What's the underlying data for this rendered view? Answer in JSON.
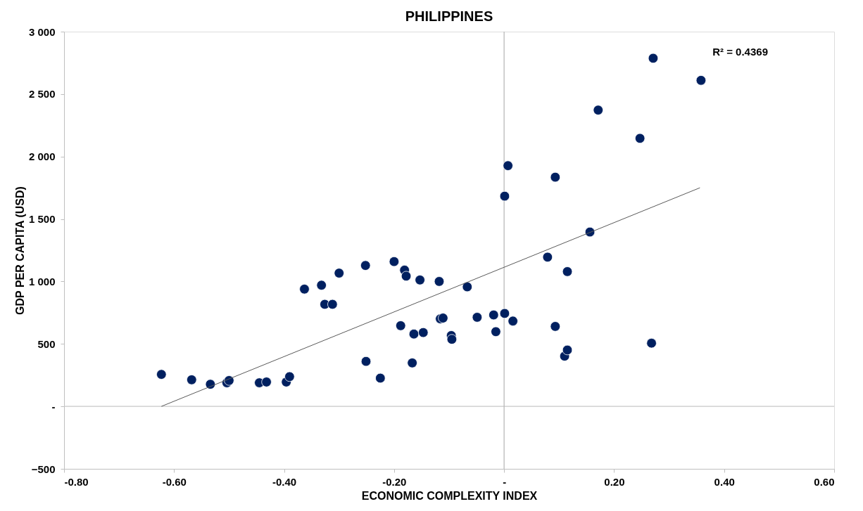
{
  "chart_data": {
    "type": "scatter",
    "title": "PHILIPPINES",
    "xlabel": "ECONOMIC COMPLEXITY INDEX",
    "ylabel": "GDP PER CAPITA (USD)",
    "annotations": [
      "R² = 0.4369"
    ],
    "x": [
      -0.623,
      -0.568,
      -0.534,
      -0.504,
      -0.5,
      -0.445,
      -0.432,
      -0.396,
      -0.39,
      -0.363,
      -0.332,
      -0.326,
      -0.312,
      -0.3,
      -0.252,
      -0.251,
      -0.225,
      -0.2,
      -0.181,
      -0.178,
      -0.188,
      -0.164,
      -0.167,
      -0.153,
      -0.147,
      -0.118,
      -0.116,
      -0.111,
      -0.096,
      -0.095,
      -0.067,
      -0.049,
      -0.019,
      -0.015,
      0.001,
      0.016,
      0.001,
      0.007,
      0.079,
      0.093,
      0.093,
      0.115,
      0.11,
      0.115,
      0.156,
      0.171,
      0.247,
      0.268,
      0.271,
      0.358
    ],
    "series": [
      {
        "color": "#002060",
        "values": [
          256,
          213,
          177,
          189,
          207,
          189,
          195,
          195,
          238,
          939,
          970,
          817,
          817,
          1067,
          1128,
          360,
          226,
          1159,
          1091,
          1043,
          646,
          579,
          348,
          1012,
          591,
          1000,
          701,
          707,
          567,
          537,
          957,
          713,
          732,
          598,
          744,
          683,
          1683,
          1927,
          1195,
          640,
          1835,
          1079,
          402,
          451,
          1396,
          2372,
          2146,
          506,
          2787,
          2610
        ]
      },
      {
        "type": "line",
        "color": "#595959",
        "x": [
          -0.623,
          0.356
        ],
        "values": [
          0,
          1750
        ],
        "marker": "none"
      }
    ],
    "marker": "circle",
    "xlim": [
      -0.8,
      0.6
    ],
    "ylim": [
      -500,
      3000
    ],
    "xticks": [
      {
        "value": -0.8,
        "label": "-0.80"
      },
      {
        "value": -0.6,
        "label": "-0.60"
      },
      {
        "value": -0.4,
        "label": "-0.40"
      },
      {
        "value": -0.2,
        "label": "-0.20"
      },
      {
        "value": 0,
        "label": "-"
      },
      {
        "value": 0.2,
        "label": "0.20"
      },
      {
        "value": 0.4,
        "label": "0.40"
      },
      {
        "value": 0.6,
        "label": "0.60"
      }
    ],
    "yticks": [
      -500,
      {
        "value": 0,
        "label": "-"
      },
      500,
      {
        "value": 1000,
        "label": "1 000"
      },
      {
        "value": 1500,
        "label": "1 500"
      },
      {
        "value": 2000,
        "label": "2 000"
      },
      {
        "value": 2500,
        "label": "2 500"
      },
      {
        "value": 3000,
        "label": "3 000"
      }
    ],
    "ref_lines": [
      {
        "axis": "x",
        "value": 0,
        "color": "#b4b4b4"
      },
      {
        "axis": "y",
        "value": 0,
        "color": "#c8c8c8"
      }
    ],
    "grid": false
  }
}
